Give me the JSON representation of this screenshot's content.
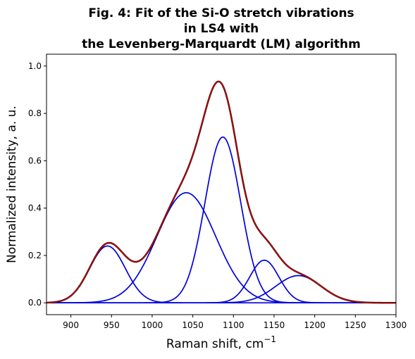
{
  "chart_data": {
    "type": "line",
    "title": [
      "Fig. 4: Fit of the Si-O stretch vibrations",
      "in LS4 with",
      "the Levenberg-Marquardt (LM) algorithm"
    ],
    "xlabel": "Raman shift, cm",
    "xlabel_superscript": "−1",
    "ylabel": "Normalized intensity, a. u.",
    "xlim": [
      870,
      1300
    ],
    "ylim": [
      -0.05,
      1.05
    ],
    "xticks": [
      900,
      950,
      1000,
      1050,
      1100,
      1150,
      1200,
      1250,
      1300
    ],
    "yticks": [
      0.0,
      0.2,
      0.4,
      0.6,
      0.8,
      1.0
    ],
    "ytick_labels": [
      "0.0",
      "0.2",
      "0.4",
      "0.6",
      "0.8",
      "1.0"
    ],
    "grid": false,
    "legend": "none",
    "colors": {
      "measured": "#000000",
      "fit": "#d40000",
      "components": "#0000dd"
    },
    "components": [
      {
        "center": 945,
        "height": 0.24,
        "width": 22
      },
      {
        "center": 1042,
        "height": 0.465,
        "width": 36
      },
      {
        "center": 1087,
        "height": 0.7,
        "width": 22
      },
      {
        "center": 1138,
        "height": 0.18,
        "width": 18
      },
      {
        "center": 1180,
        "height": 0.115,
        "width": 28
      }
    ]
  }
}
